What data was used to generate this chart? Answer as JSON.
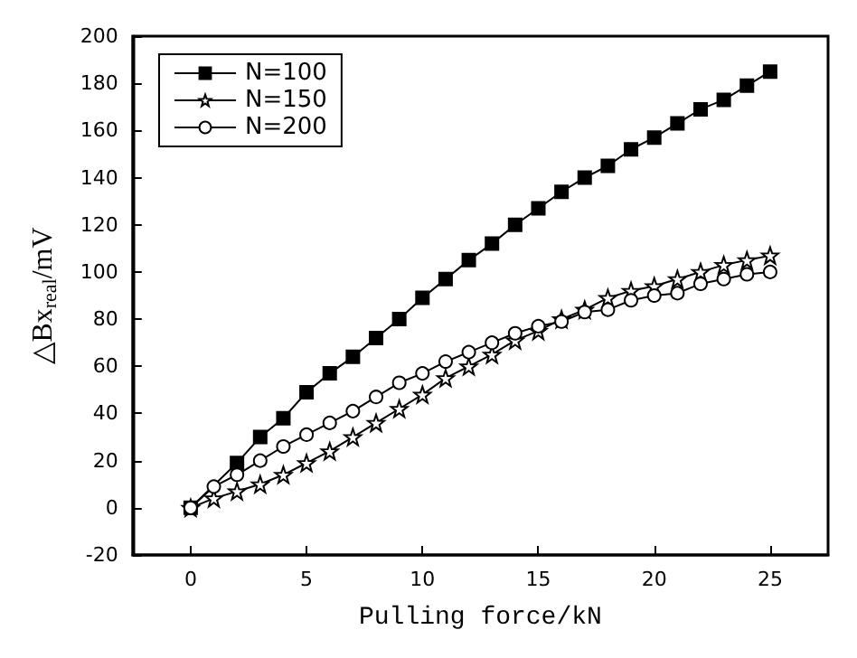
{
  "chart_data": {
    "type": "line",
    "xlabel": "Pulling force/kN",
    "ylabel": "△Bx$_{real}$/mV",
    "x": [
      0,
      1,
      2,
      3,
      4,
      5,
      6,
      7,
      8,
      9,
      10,
      11,
      12,
      13,
      14,
      15,
      16,
      17,
      18,
      19,
      20,
      21,
      22,
      23,
      24,
      25
    ],
    "xlim": [
      -2.5,
      27.5
    ],
    "xticks": [
      0,
      5,
      10,
      15,
      20,
      25
    ],
    "ylim": [
      -20,
      200
    ],
    "yticks": [
      -20,
      0,
      20,
      40,
      60,
      80,
      100,
      120,
      140,
      160,
      180,
      200
    ],
    "grid": false,
    "legend": "top left",
    "line_style": "solid",
    "series": [
      {
        "name": "N=100",
        "color": "#000000",
        "marker": "square",
        "values": [
          0,
          null,
          19,
          30,
          38,
          49,
          57,
          64,
          72,
          80,
          89,
          97,
          105,
          112,
          120,
          127,
          134,
          140,
          145,
          152,
          157,
          163,
          169,
          173,
          179,
          185
        ]
      },
      {
        "name": "N=150",
        "color": "#000000",
        "marker": "star",
        "values": [
          0,
          4,
          7,
          10,
          14,
          19,
          24,
          30,
          36,
          42,
          48,
          55,
          60,
          65,
          71,
          75,
          80,
          84,
          89,
          92,
          94,
          97,
          100,
          103,
          105,
          107
        ]
      },
      {
        "name": "N=200",
        "color": "#000000",
        "marker": "circle",
        "values": [
          0,
          9,
          14,
          20,
          26,
          31,
          36,
          41,
          47,
          53,
          57,
          62,
          66,
          70,
          74,
          77,
          79,
          83,
          84,
          88,
          90,
          91,
          95,
          97,
          99,
          100
        ]
      }
    ]
  }
}
